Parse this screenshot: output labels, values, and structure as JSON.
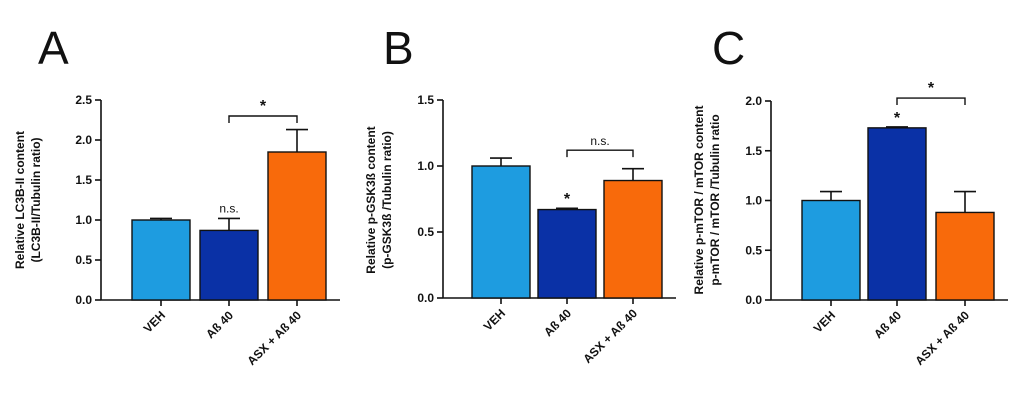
{
  "colors": {
    "veh": "#1e9ce0",
    "abeta": "#0a31a6",
    "asx": "#f86a0b",
    "axis": "#111111"
  },
  "chart_data": [
    {
      "panel": "A",
      "type": "bar",
      "ylabel_lines": [
        "Relative LC3B-II content",
        "(LC3B-II/Tubulin ratio)"
      ],
      "ylim": [
        0,
        2.5
      ],
      "yticks": [
        "0.0",
        "0.5",
        "1.0",
        "1.5",
        "2.0",
        "2.5"
      ],
      "ytick_values": [
        0,
        0.5,
        1.0,
        1.5,
        2.0,
        2.5
      ],
      "categories": [
        "VEH",
        "Aß 40",
        "ASX + Aß 40"
      ],
      "values": [
        1.0,
        0.87,
        1.85
      ],
      "errors": [
        0.02,
        0.15,
        0.28
      ],
      "bar_annotations": [
        "",
        "n.s.",
        ""
      ],
      "brackets": [
        {
          "from": 1,
          "to": 2,
          "label": "*",
          "y": 2.3
        }
      ]
    },
    {
      "panel": "B",
      "type": "bar",
      "ylabel_lines": [
        "Relative p-GSK3ß content",
        "(p-GSK3ß  /Tubulin ratio)"
      ],
      "ylim": [
        0,
        1.5
      ],
      "yticks": [
        "0.0",
        "0.5",
        "1.0",
        "1.5"
      ],
      "ytick_values": [
        0,
        0.5,
        1.0,
        1.5
      ],
      "categories": [
        "VEH",
        "Aß 40",
        "ASX + Aß 40"
      ],
      "values": [
        1.0,
        0.67,
        0.89
      ],
      "errors": [
        0.06,
        0.01,
        0.09
      ],
      "bar_annotations": [
        "",
        "*",
        ""
      ],
      "brackets": [
        {
          "from": 1,
          "to": 2,
          "label": "n.s.",
          "y": 1.12
        }
      ]
    },
    {
      "panel": "C",
      "type": "bar",
      "ylabel_lines": [
        "Relative p-mTOR / mTOR content",
        "p-mTOR / mTOR /Tubulin ratio"
      ],
      "ylim": [
        0,
        2.0
      ],
      "yticks": [
        "0.0",
        "0.5",
        "1.0",
        "1.5",
        "2.0"
      ],
      "ytick_values": [
        0,
        0.5,
        1.0,
        1.5,
        2.0
      ],
      "categories": [
        "VEH",
        "Aß 40",
        "ASX + Aß 40"
      ],
      "values": [
        1.0,
        1.73,
        0.88
      ],
      "errors": [
        0.09,
        0.01,
        0.21
      ],
      "bar_annotations": [
        "",
        "*",
        ""
      ],
      "brackets": [
        {
          "from": 1,
          "to": 2,
          "label": "*",
          "y": 2.03
        }
      ]
    }
  ]
}
